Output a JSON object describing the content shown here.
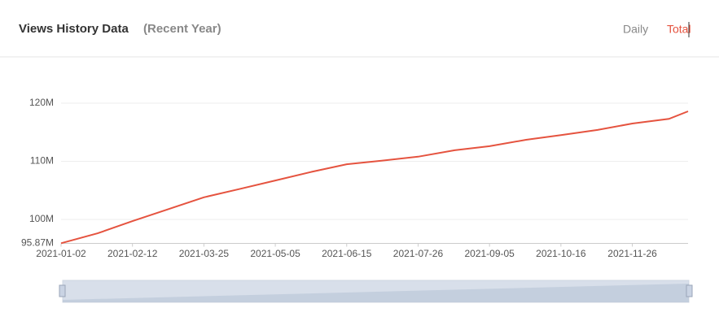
{
  "chart_data": {
    "type": "line",
    "title": "Views History Data",
    "subtitle": "(Recent Year)",
    "x": [
      "2021-01-02",
      "2021-01-23",
      "2021-02-12",
      "2021-03-04",
      "2021-03-25",
      "2021-04-14",
      "2021-05-05",
      "2021-05-26",
      "2021-06-15",
      "2021-07-05",
      "2021-07-26",
      "2021-08-16",
      "2021-09-05",
      "2021-09-26",
      "2021-10-16",
      "2021-11-06",
      "2021-11-26",
      "2021-12-17",
      "2021-12-28"
    ],
    "values": [
      95.9,
      97.6,
      99.7,
      101.7,
      103.8,
      105.2,
      106.7,
      108.2,
      109.5,
      110.1,
      110.8,
      111.9,
      112.6,
      113.7,
      114.5,
      115.4,
      116.5,
      117.3,
      118.6
    ],
    "color": "#e5533f",
    "xlim": [
      "2021-01-02",
      "2021-12-28"
    ],
    "xticks": [
      "2021-01-02",
      "2021-02-12",
      "2021-03-25",
      "2021-05-05",
      "2021-06-15",
      "2021-07-26",
      "2021-09-05",
      "2021-10-16",
      "2021-11-26"
    ],
    "ylim": [
      95.87,
      120
    ],
    "yticks": [
      {
        "value": 95.87,
        "label": "95.87M"
      },
      {
        "value": 100,
        "label": "100M"
      },
      {
        "value": 110,
        "label": "110M"
      },
      {
        "value": 120,
        "label": "120M"
      }
    ],
    "grid": true
  },
  "toggle": [
    "Daily",
    "Total"
  ]
}
